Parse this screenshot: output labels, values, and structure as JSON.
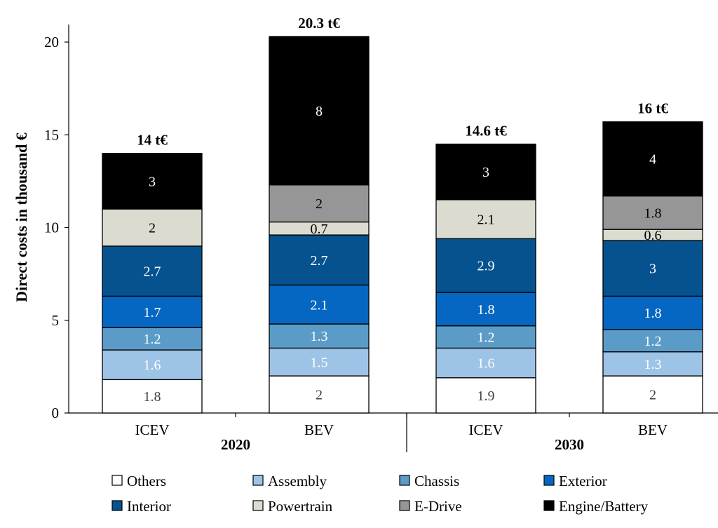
{
  "chart_data": {
    "type": "bar",
    "stacked": true,
    "ylabel": "Direct costs in thousand €",
    "ylim": [
      0,
      21
    ],
    "yticks": [
      0,
      5,
      10,
      15,
      20
    ],
    "grid": false,
    "legend_position": "bottom",
    "categories": [
      "ICEV",
      "BEV",
      "ICEV",
      "BEV"
    ],
    "groups": [
      {
        "label": "2020",
        "categories": [
          0,
          1
        ]
      },
      {
        "label": "2030",
        "categories": [
          2,
          3
        ]
      }
    ],
    "totals": [
      "14 t€",
      "20.3 t€",
      "14.6 t€",
      "16 t€"
    ],
    "series": [
      {
        "name": "Others",
        "color": "#ffffff",
        "text_color": "#404040",
        "values": [
          1.8,
          2,
          1.9,
          2
        ],
        "labels": [
          "1.8",
          "2",
          "1.9",
          "2"
        ]
      },
      {
        "name": "Assembly",
        "color": "#9dc3e6",
        "text_color": "#ffffff",
        "values": [
          1.6,
          1.5,
          1.6,
          1.3
        ],
        "labels": [
          "1.6",
          "1.5",
          "1.6",
          "1.3"
        ]
      },
      {
        "name": "Chassis",
        "color": "#5b9bc8",
        "text_color": "#ffffff",
        "values": [
          1.2,
          1.3,
          1.2,
          1.2
        ],
        "labels": [
          "1.2",
          "1.3",
          "1.2",
          "1.2"
        ]
      },
      {
        "name": "Exterior",
        "color": "#0567c1",
        "text_color": "#ffffff",
        "values": [
          1.7,
          2.1,
          1.8,
          1.8
        ],
        "labels": [
          "1.7",
          "2.1",
          "1.8",
          "1.8"
        ]
      },
      {
        "name": "Interior",
        "color": "#05528f",
        "text_color": "#ffffff",
        "values": [
          2.7,
          2.7,
          2.9,
          3
        ],
        "labels": [
          "2.7",
          "2.7",
          "2.9",
          "3"
        ]
      },
      {
        "name": "Powertrain",
        "color": "#dcdbd0",
        "text_color": "#000000",
        "values": [
          2,
          0.7,
          2.1,
          0.6
        ],
        "labels": [
          "2",
          "0.7",
          "2.1",
          "0.6"
        ]
      },
      {
        "name": "E-Drive",
        "color": "#969696",
        "text_color": "#000000",
        "values": [
          0,
          2,
          0,
          1.8
        ],
        "labels": [
          "",
          "2",
          "",
          "1.8"
        ]
      },
      {
        "name": "Engine/Battery",
        "color": "#000000",
        "text_color": "#ffffff",
        "values": [
          3,
          8,
          3,
          4
        ],
        "labels": [
          "3",
          "8",
          "3",
          "4"
        ]
      }
    ]
  }
}
